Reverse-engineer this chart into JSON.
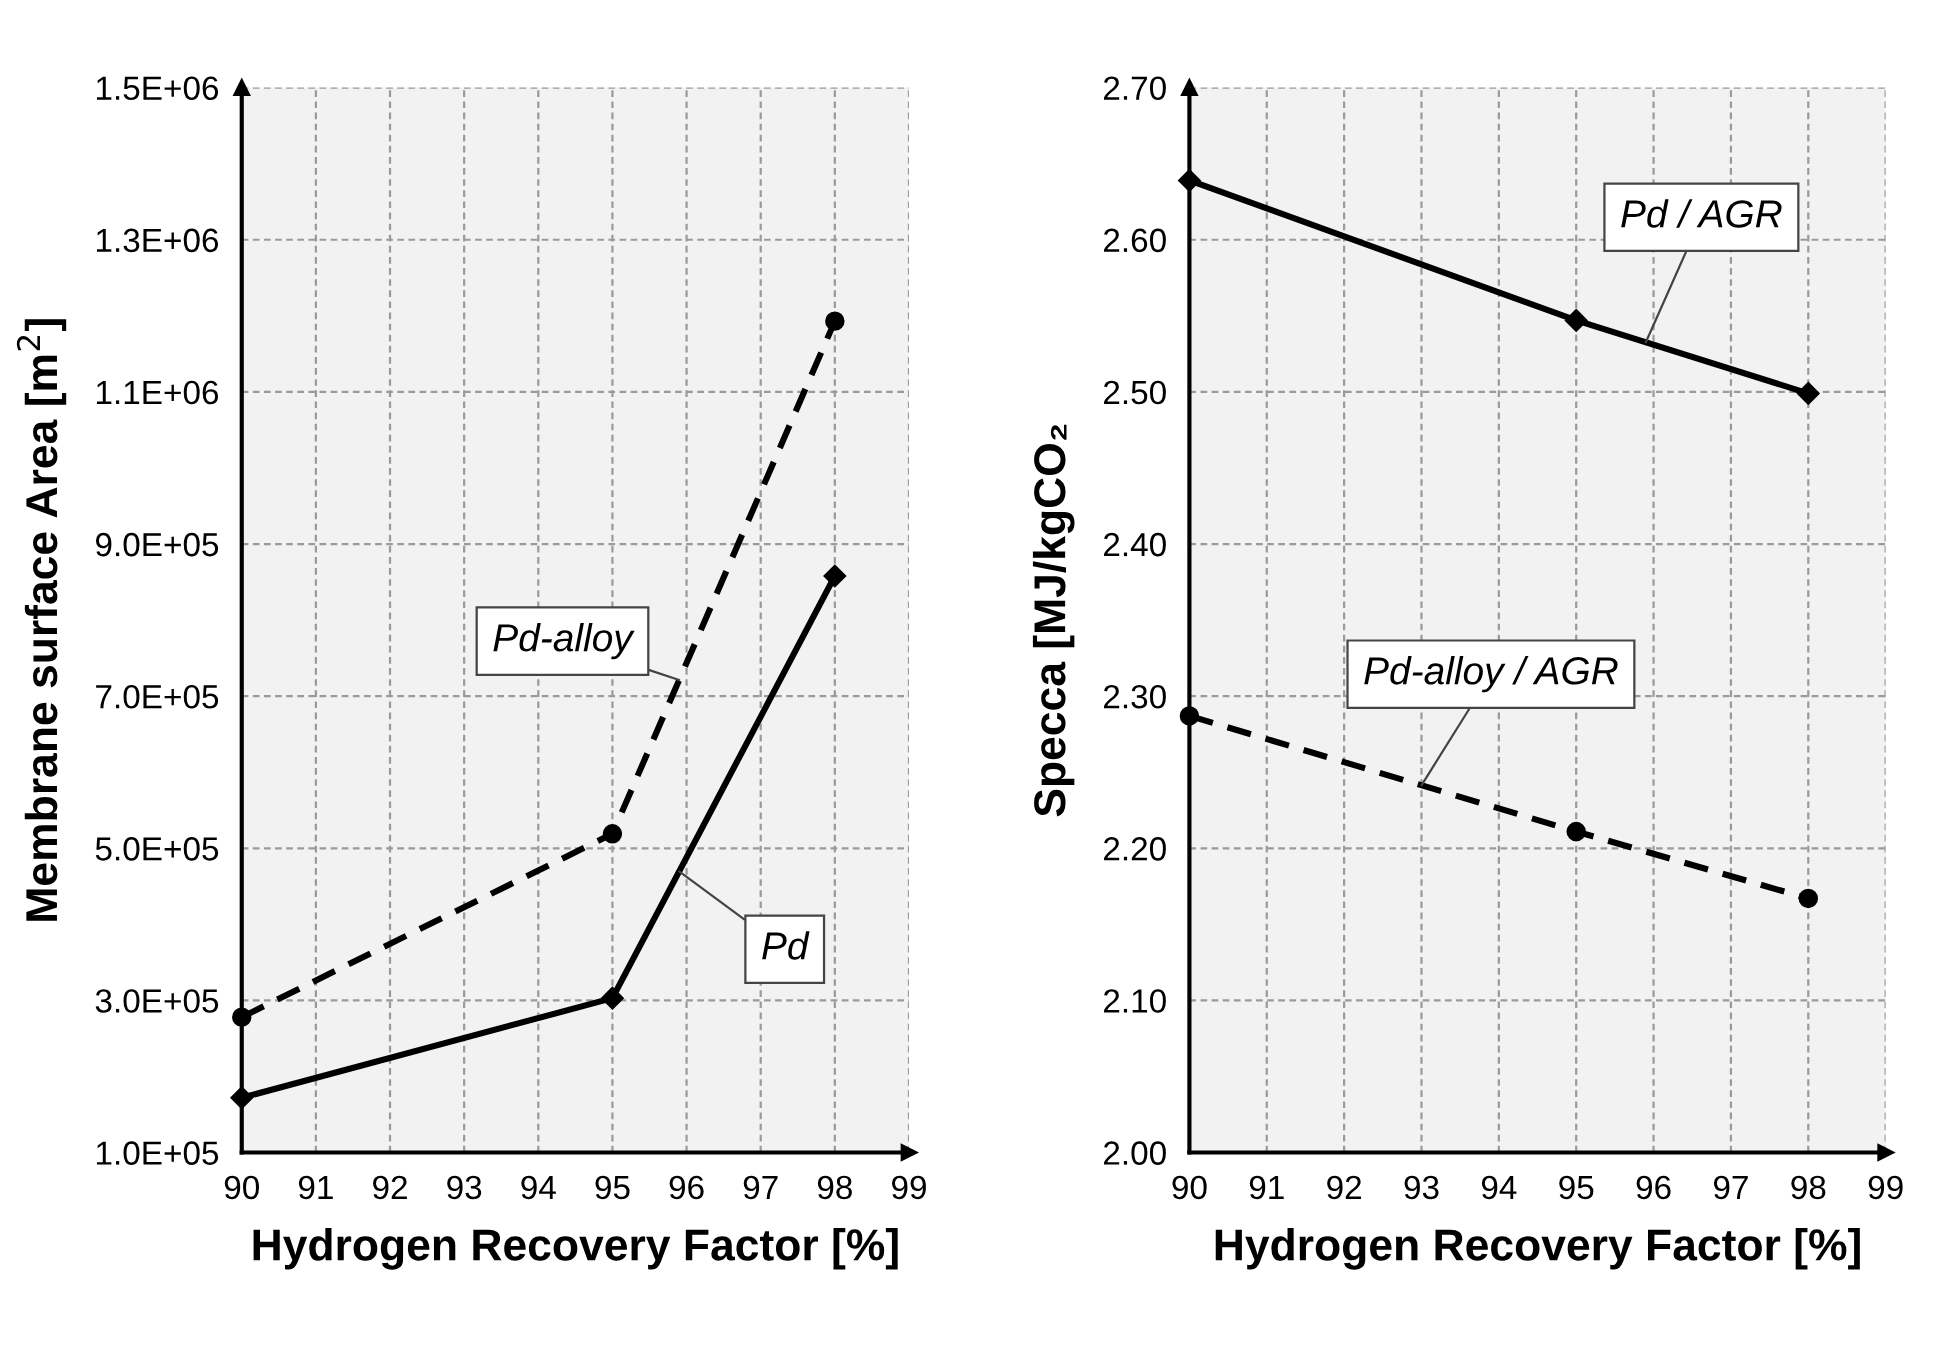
{
  "chart_data": [
    {
      "type": "line",
      "xlabel": "Hydrogen Recovery Factor [%]",
      "ylabel": "Membrane surface Area [m$^{2}$]",
      "x": [
        90,
        95,
        98
      ],
      "xlim": [
        90,
        99
      ],
      "xticks": [
        90,
        91,
        92,
        93,
        94,
        95,
        96,
        97,
        98,
        99
      ],
      "ylim": [
        100000,
        1500000
      ],
      "yticks": [
        {
          "value": 100000,
          "label": "1.0E+05"
        },
        {
          "value": 300000,
          "label": "3.0E+05"
        },
        {
          "value": 500000,
          "label": "5.0E+05"
        },
        {
          "value": 700000,
          "label": "7.0E+05"
        },
        {
          "value": 900000,
          "label": "9.0E+05"
        },
        {
          "value": 1100000,
          "label": "1.1E+06"
        },
        {
          "value": 1300000,
          "label": "1.3E+06"
        },
        {
          "value": 1500000,
          "label": "1.5E+06"
        }
      ],
      "grid": true,
      "legend": false,
      "series": [
        {
          "name": "Pd-alloy",
          "color": "#000000",
          "values": [
            278000,
            519000,
            1193000
          ],
          "marker": "circle",
          "line_style": "dashed"
        },
        {
          "name": "Pd",
          "color": "#000000",
          "values": [
            172000,
            303000,
            858000
          ],
          "marker": "diamond",
          "line_style": "solid"
        }
      ]
    },
    {
      "type": "line",
      "xlabel": "Hydrogen Recovery Factor [%]",
      "ylabel": "Specca [MJ/kgCO₂",
      "x": [
        90,
        95,
        98
      ],
      "xlim": [
        90,
        99
      ],
      "xticks": [
        90,
        91,
        92,
        93,
        94,
        95,
        96,
        97,
        98,
        99
      ],
      "ylim": [
        2.0,
        2.7
      ],
      "yticks": [
        {
          "value": 2.0,
          "label": "2.00"
        },
        {
          "value": 2.1,
          "label": "2.10"
        },
        {
          "value": 2.2,
          "label": "2.20"
        },
        {
          "value": 2.3,
          "label": "2.30"
        },
        {
          "value": 2.4,
          "label": "2.40"
        },
        {
          "value": 2.5,
          "label": "2.50"
        },
        {
          "value": 2.6,
          "label": "2.60"
        },
        {
          "value": 2.7,
          "label": "2.70"
        }
      ],
      "grid": true,
      "legend": false,
      "series": [
        {
          "name": "Pd / AGR",
          "color": "#000000",
          "values": [
            2.639,
            2.547,
            2.499
          ],
          "marker": "diamond",
          "line_style": "solid"
        },
        {
          "name": "Pd-alloy / AGR",
          "color": "#000000",
          "values": [
            2.287,
            2.211,
            2.167
          ],
          "marker": "circle",
          "line_style": "dashed"
        }
      ]
    }
  ]
}
